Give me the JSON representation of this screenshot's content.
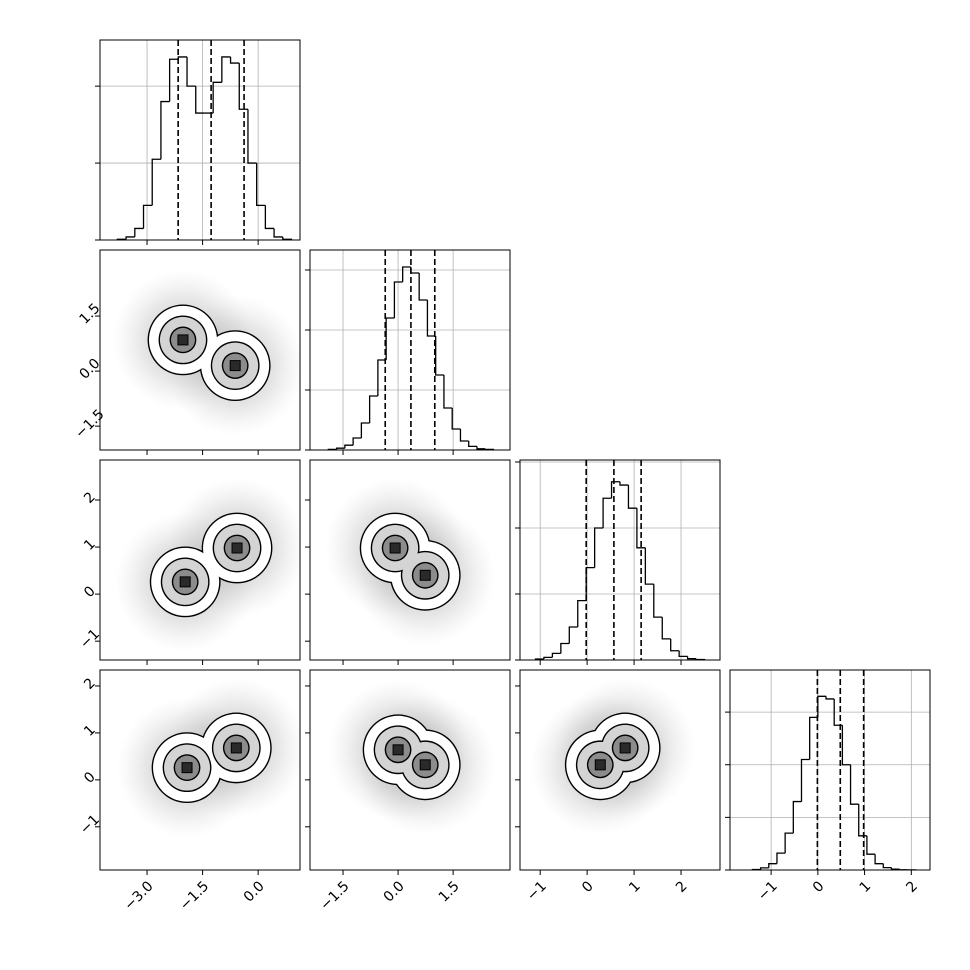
{
  "chart_data": [
    {
      "type": "histogram",
      "xlim": [
        -4.27,
        1.13
      ],
      "ylim": [
        0,
        2600
      ],
      "xticks": [
        -3,
        -1.5,
        0
      ],
      "yticks": [
        0,
        1000,
        2000
      ],
      "xtick_labels": false,
      "ytick_labels": false,
      "grid": true,
      "bins": [
        -3.8,
        -3.565,
        -3.33,
        -3.095,
        -2.86,
        -2.625,
        -2.39,
        -2.155,
        -1.92,
        -1.685,
        -1.45,
        -1.215,
        -0.98,
        -0.745,
        -0.51,
        -0.275,
        -0.04,
        0.195,
        0.43,
        0.665,
        0.9
      ],
      "counts": [
        10,
        40,
        150,
        450,
        1050,
        1800,
        2350,
        2380,
        2000,
        1650,
        1650,
        2050,
        2380,
        2300,
        1700,
        1000,
        450,
        150,
        40,
        10
      ],
      "quantiles": [
        -2.16,
        -1.27,
        -0.38
      ]
    },
    {
      "type": "hist2d",
      "xlim": [
        -4.27,
        1.13
      ],
      "ylim": [
        -2.15,
        3.3
      ],
      "xticks": [
        -3,
        -1.5,
        0
      ],
      "yticks": [
        {
          "value": -1.5,
          "label": "−1.5"
        },
        {
          "value": 0,
          "label": "0.0"
        },
        1.5
      ],
      "xtick_labels": false,
      "ytick_labels": true,
      "grid": false,
      "x": [
        -2.03,
        -0.62
      ],
      "y": [
        0.85,
        0.15
      ]
    },
    {
      "type": "histogram",
      "xlim": [
        -2.4,
        3.05
      ],
      "ylim": [
        0,
        3333
      ],
      "xticks": [
        -1.5,
        0,
        1.5
      ],
      "yticks": [
        0,
        1000,
        2000,
        3000
      ],
      "xtick_labels": false,
      "ytick_labels": false,
      "grid": true,
      "bins": [
        -1.9,
        -1.675,
        -1.45,
        -1.225,
        -1.0,
        -0.775,
        -0.55,
        -0.325,
        -0.1,
        0.125,
        0.35,
        0.575,
        0.8,
        1.025,
        1.25,
        1.475,
        1.7,
        1.925,
        2.15,
        2.375,
        2.6
      ],
      "counts": [
        10,
        30,
        80,
        200,
        450,
        900,
        1500,
        2200,
        2800,
        3050,
        2950,
        2500,
        1900,
        1250,
        700,
        350,
        150,
        60,
        20,
        10
      ],
      "quantiles": [
        -0.35,
        0.35,
        1.0
      ]
    },
    {
      "type": "hist2d",
      "xlim": [
        -4.27,
        1.13
      ],
      "ylim": [
        -1.4,
        2.85
      ],
      "xticks": [
        -3,
        -1.5,
        0
      ],
      "yticks": [
        {
          "value": -1,
          "label": "−1"
        },
        0,
        1,
        2
      ],
      "xtick_labels": false,
      "ytick_labels": true,
      "grid": false,
      "x": [
        -1.97,
        -0.57
      ],
      "y": [
        0.26,
        0.98
      ]
    },
    {
      "type": "hist2d",
      "xlim": [
        -2.4,
        3.05
      ],
      "ylim": [
        -1.4,
        2.85
      ],
      "xticks": [
        -1.5,
        0,
        1.5
      ],
      "yticks": [
        -1,
        0,
        1,
        2
      ],
      "xtick_labels": false,
      "ytick_labels": false,
      "grid": false,
      "x": [
        -0.08,
        0.74
      ],
      "y": [
        0.98,
        0.4
      ]
    },
    {
      "type": "histogram",
      "xlim": [
        -1.43,
        2.83
      ],
      "ylim": [
        0,
        3030
      ],
      "xticks": [
        -1,
        0,
        1,
        2
      ],
      "yticks": [
        0,
        1000,
        2000,
        3000
      ],
      "xtick_labels": false,
      "ytick_labels": false,
      "grid": true,
      "bins": [
        -1.1,
        -0.92,
        -0.74,
        -0.56,
        -0.38,
        -0.2,
        -0.02,
        0.16,
        0.34,
        0.52,
        0.7,
        0.88,
        1.06,
        1.24,
        1.42,
        1.6,
        1.78,
        1.96,
        2.14,
        2.32,
        2.5
      ],
      "counts": [
        15,
        40,
        100,
        250,
        500,
        900,
        1400,
        2000,
        2450,
        2700,
        2650,
        2300,
        1700,
        1150,
        650,
        320,
        140,
        55,
        20,
        8
      ],
      "quantiles": [
        -0.02,
        0.57,
        1.15
      ]
    },
    {
      "type": "hist2d",
      "xlim": [
        -4.27,
        1.13
      ],
      "ylim": [
        -1.92,
        2.34
      ],
      "xticks": [
        {
          "value": -3,
          "label": "−3.0"
        },
        {
          "value": -1.5,
          "label": "−1.5"
        },
        {
          "value": 0,
          "label": "0.0"
        }
      ],
      "yticks": [
        {
          "value": -1,
          "label": "−1"
        },
        0,
        1,
        2
      ],
      "xtick_labels": true,
      "ytick_labels": true,
      "grid": false,
      "x": [
        -1.92,
        -0.59
      ],
      "y": [
        0.26,
        0.68
      ]
    },
    {
      "type": "hist2d",
      "xlim": [
        -2.4,
        3.05
      ],
      "ylim": [
        -1.92,
        2.34
      ],
      "xticks": [
        {
          "value": -1.5,
          "label": "−1.5"
        },
        {
          "value": 0,
          "label": "0.0"
        },
        1.5
      ],
      "yticks": [
        -1,
        0,
        1,
        2
      ],
      "xtick_labels": true,
      "ytick_labels": false,
      "grid": false,
      "x": [
        0.0,
        0.74
      ],
      "y": [
        0.64,
        0.32
      ]
    },
    {
      "type": "hist2d",
      "xlim": [
        -1.43,
        2.83
      ],
      "ylim": [
        -1.92,
        2.34
      ],
      "xticks": [
        {
          "value": -1,
          "label": "−1"
        },
        0,
        1,
        2
      ],
      "yticks": [
        -1,
        0,
        1,
        2
      ],
      "xtick_labels": true,
      "ytick_labels": false,
      "grid": false,
      "x": [
        0.28,
        0.81
      ],
      "y": [
        0.32,
        0.68
      ]
    },
    {
      "type": "histogram",
      "xlim": [
        -1.88,
        2.4
      ],
      "ylim": [
        0,
        3800
      ],
      "xticks": [
        {
          "value": -1,
          "label": "−1"
        },
        0,
        1,
        2
      ],
      "yticks": [
        0,
        1000,
        2000,
        3000
      ],
      "xtick_labels": true,
      "ytick_labels": false,
      "grid": true,
      "bins": [
        -1.4,
        -1.225,
        -1.05,
        -0.875,
        -0.7,
        -0.525,
        -0.35,
        -0.175,
        0,
        0.175,
        0.35,
        0.525,
        0.7,
        0.875,
        1.05,
        1.225,
        1.4,
        1.575,
        1.75,
        1.925,
        2.1
      ],
      "counts": [
        10,
        40,
        120,
        320,
        700,
        1300,
        2100,
        2900,
        3300,
        3250,
        2750,
        2000,
        1250,
        650,
        300,
        120,
        45,
        15,
        5,
        2
      ],
      "quantiles": [
        -0.01,
        0.48,
        0.98
      ]
    }
  ]
}
